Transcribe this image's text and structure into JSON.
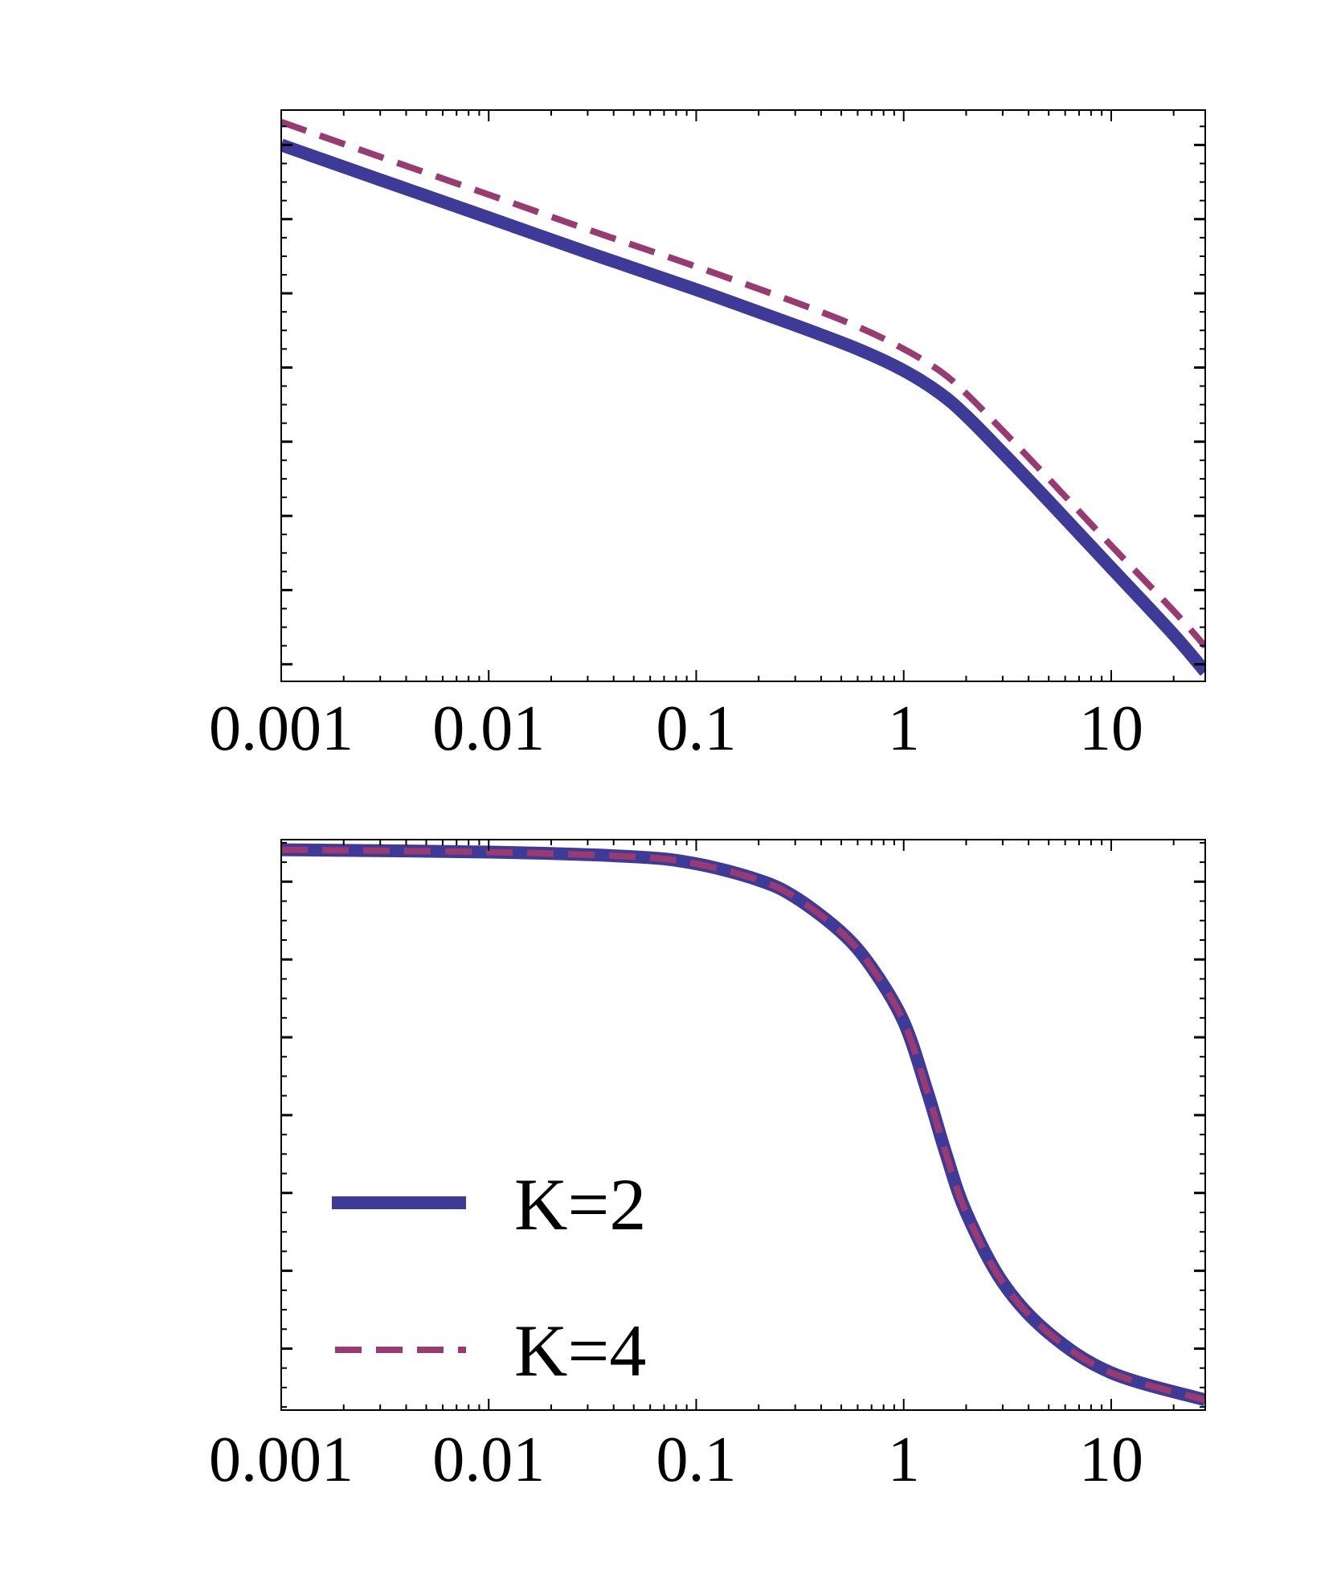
{
  "chart_data": [
    {
      "type": "line",
      "title": "",
      "xlabel": "",
      "ylabel": "",
      "x_scale": "log",
      "xlim": [
        0.001,
        28.4
      ],
      "ylim": [
        -0.23,
        7.47
      ],
      "y_units_note_hidden": "",
      "x_ticks": [
        0.001,
        0.01,
        0.1,
        1,
        10
      ],
      "x_tick_labels": [
        "0.001",
        "0.01",
        "0.1",
        "1",
        "10"
      ],
      "y_major_ticks": [
        0,
        1,
        2,
        3,
        4,
        5,
        6,
        7
      ],
      "y_tick_labels_visible": false,
      "grid": false,
      "x": [
        0.001,
        0.003,
        0.01,
        0.03,
        0.1,
        0.3,
        0.6,
        1,
        1.5,
        2,
        3,
        5,
        10,
        20,
        28.4
      ],
      "series": [
        {
          "name": "K=2",
          "color": "#3e3a98",
          "style": "solid",
          "values": [
            7.0,
            6.53,
            6.02,
            5.55,
            5.05,
            4.57,
            4.25,
            3.96,
            3.65,
            3.35,
            2.85,
            2.2,
            1.3,
            0.4,
            -0.1
          ]
        },
        {
          "name": "K=4",
          "color": "#993a70",
          "style": "dashed",
          "values": [
            7.31,
            6.84,
            6.33,
            5.86,
            5.36,
            4.88,
            4.55,
            4.25,
            3.95,
            3.65,
            3.15,
            2.5,
            1.6,
            0.72,
            0.24
          ]
        }
      ]
    },
    {
      "type": "line",
      "title": "",
      "xlabel": "",
      "ylabel": "",
      "x_scale": "log",
      "xlim": [
        0.001,
        28.4
      ],
      "ylim": [
        -0.79,
        6.54
      ],
      "x_ticks": [
        0.001,
        0.01,
        0.1,
        1,
        10
      ],
      "x_tick_labels": [
        "0.001",
        "0.01",
        "0.1",
        "1",
        "10"
      ],
      "y_major_ticks": [
        0,
        1,
        2,
        3,
        4,
        5,
        6
      ],
      "y_tick_labels_visible": false,
      "grid": false,
      "legend_position": "bottom-left",
      "x": [
        0.001,
        0.01,
        0.05,
        0.1,
        0.2,
        0.3,
        0.5,
        0.7,
        1,
        1.3,
        1.6,
        2,
        3,
        5,
        10,
        28.4
      ],
      "series": [
        {
          "name": "K=2",
          "color": "#3e3a98",
          "style": "solid",
          "values": [
            6.41,
            6.38,
            6.32,
            6.23,
            6.02,
            5.8,
            5.35,
            4.9,
            4.2,
            3.3,
            2.5,
            1.75,
            0.85,
            0.2,
            -0.31,
            -0.66
          ]
        },
        {
          "name": "K=4",
          "color": "#993a70",
          "style": "dashed",
          "values": [
            6.41,
            6.38,
            6.32,
            6.23,
            6.02,
            5.8,
            5.35,
            4.9,
            4.2,
            3.3,
            2.5,
            1.75,
            0.85,
            0.2,
            -0.31,
            -0.66
          ]
        }
      ]
    }
  ]
}
